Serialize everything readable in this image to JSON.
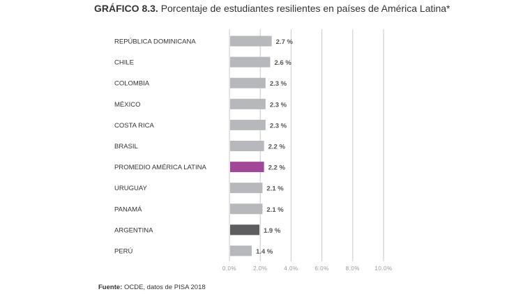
{
  "title": {
    "prefix": "GRÁFICO 8.3.",
    "text": "Porcentaje de estudiantes resilientes en países de América Latina*"
  },
  "footer": {
    "label": "Fuente:",
    "text": "OCDE, datos de PISA 2018"
  },
  "colors": {
    "default": "#b7b8bc",
    "highlight": "#a0479a",
    "dark": "#5e5e60",
    "grid": "#c9c9c9",
    "tick": "#999999",
    "text": "#333333"
  },
  "chart_data": {
    "type": "bar",
    "orientation": "horizontal",
    "categories": [
      "REPÚBLICA DOMINICANA",
      "CHILE",
      "COLOMBIA",
      "MÉXICO",
      "COSTA RICA",
      "BRASIL",
      "PROMEDIO AMÉRICA LATINA",
      "URUGUAY",
      "PANAMÁ",
      "ARGENTINA",
      "PERÚ"
    ],
    "values": [
      2.7,
      2.6,
      2.3,
      2.3,
      2.3,
      2.2,
      2.2,
      2.1,
      2.1,
      1.9,
      1.4
    ],
    "value_labels": [
      "2.7 %",
      "2.6 %",
      "2.3 %",
      "2.3 %",
      "2.3 %",
      "2.2 %",
      "2.2 %",
      "2.1 %",
      "2.1 %",
      "1.9 %",
      "1.4 %"
    ],
    "bar_colors": [
      "default",
      "default",
      "default",
      "default",
      "default",
      "default",
      "highlight",
      "default",
      "default",
      "dark",
      "default"
    ],
    "xlim": [
      0,
      10
    ],
    "ticks": [
      0,
      2,
      4,
      6,
      8,
      10
    ],
    "tick_labels": [
      "0.0%",
      "2.0%",
      "4.0%",
      "6.0%",
      "8.0%",
      "10.0%"
    ],
    "grid": true,
    "legend": false
  }
}
